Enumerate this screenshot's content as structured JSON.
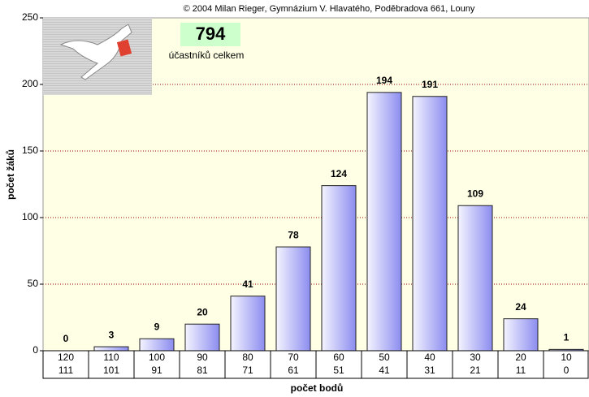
{
  "chart_data": {
    "type": "bar",
    "credit": "© 2004 Milan Rieger, Gymnázium V. Hlavatého, Poděbradova 661, Louny",
    "total": "794",
    "total_label": "účastníků celkem",
    "x_label": "počet bodů",
    "y_label": "počet žáků",
    "categories": [
      [
        "120",
        "111"
      ],
      [
        "110",
        "101"
      ],
      [
        "100",
        "91"
      ],
      [
        "90",
        "81"
      ],
      [
        "80",
        "71"
      ],
      [
        "70",
        "61"
      ],
      [
        "60",
        "51"
      ],
      [
        "50",
        "41"
      ],
      [
        "40",
        "31"
      ],
      [
        "30",
        "21"
      ],
      [
        "20",
        "11"
      ],
      [
        "10",
        "0"
      ]
    ],
    "values": [
      0,
      3,
      9,
      20,
      41,
      78,
      124,
      194,
      191,
      109,
      24,
      1
    ],
    "color": "#9999ee",
    "ylim": [
      0,
      250
    ],
    "yticks": [
      0,
      50,
      100,
      150,
      200,
      250
    ],
    "grid": true
  }
}
